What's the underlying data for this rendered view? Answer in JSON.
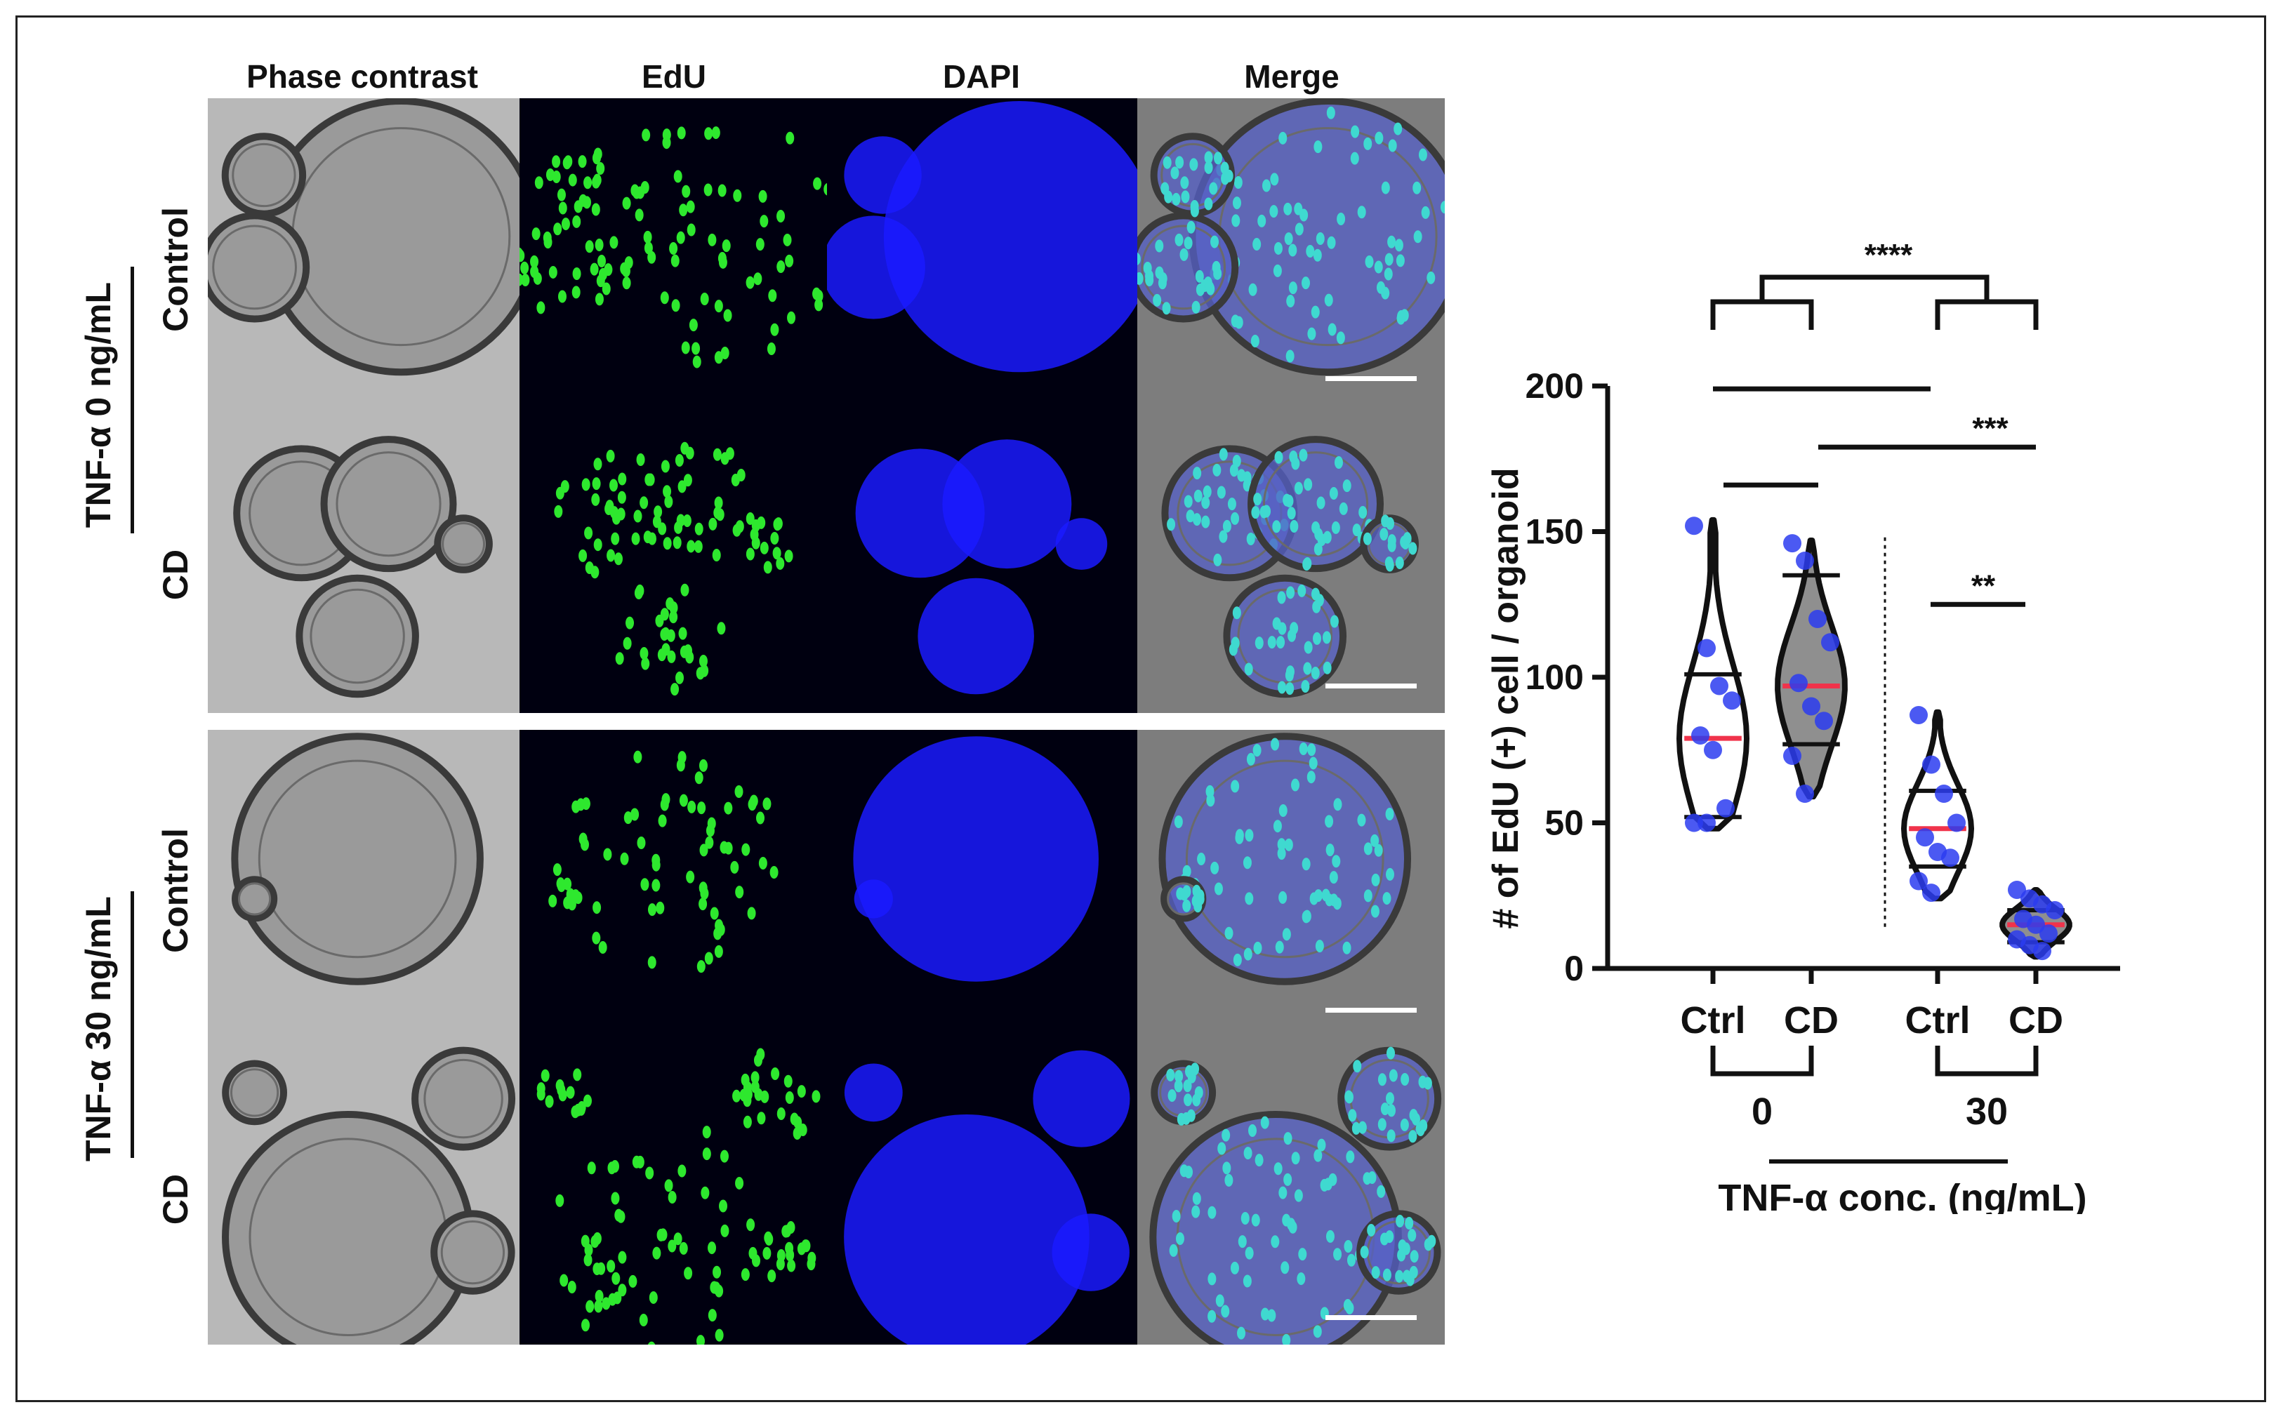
{
  "figure": {
    "column_headers": [
      "Phase contrast",
      "EdU",
      "DAPI",
      "Merge"
    ],
    "group_labels": [
      "TNF-α 0 ng/mL",
      "TNF-α 30 ng/mL"
    ],
    "row_labels": [
      "Control",
      "CD",
      "Control",
      "CD"
    ]
  },
  "colors": {
    "phase": "#a9a9a9",
    "edu": "#2ee82e",
    "dapi": "#1a1aff",
    "merge_cells": "#3fd9d0",
    "violin_fill_ctrl": "#ffffff",
    "violin_fill_cd": "#8f8f8f",
    "points": "#2b3cf0",
    "median": "#f0334b",
    "quartile": "#111111"
  },
  "chart_data": {
    "type": "violin",
    "ylabel": "# of EdU (+) cell / organoid",
    "xlabel": "TNF-α conc. (ng/mL)",
    "ylim": [
      0,
      200
    ],
    "yticks": [
      "0",
      "50",
      "100",
      "150",
      "200"
    ],
    "categories": [
      "Ctrl",
      "CD",
      "Ctrl",
      "CD"
    ],
    "group_levels": [
      "0",
      "30"
    ],
    "series": [
      {
        "category": "Ctrl",
        "group": "0",
        "points": [
          152,
          110,
          97,
          92,
          80,
          75,
          55,
          50,
          50
        ],
        "median": 79,
        "q1": 52,
        "q3": 101,
        "min": 48,
        "max": 154
      },
      {
        "category": "CD",
        "group": "0",
        "points": [
          146,
          140,
          120,
          112,
          98,
          90,
          85,
          73,
          60
        ],
        "median": 97,
        "q1": 77,
        "q3": 135,
        "min": 59,
        "max": 147
      },
      {
        "category": "Ctrl",
        "group": "30",
        "points": [
          87,
          70,
          60,
          50,
          45,
          40,
          38,
          30,
          26
        ],
        "median": 48,
        "q1": 35,
        "q3": 61,
        "min": 24,
        "max": 88
      },
      {
        "category": "CD",
        "group": "30",
        "points": [
          27,
          24,
          22,
          20,
          17,
          15,
          12,
          10,
          8,
          6
        ],
        "median": 15,
        "q1": 9,
        "q3": 20,
        "min": 4,
        "max": 27
      }
    ],
    "significance": [
      {
        "label": "****",
        "comparison": "0 vs 30"
      },
      {
        "label": "",
        "comparison": "Ctrl 0 vs Ctrl 30"
      },
      {
        "label": "***",
        "comparison": "CD 0 vs CD 30"
      },
      {
        "label": "",
        "comparison": "Ctrl 0 vs CD 0"
      },
      {
        "label": "**",
        "comparison": "Ctrl 30 vs CD 30"
      }
    ]
  }
}
